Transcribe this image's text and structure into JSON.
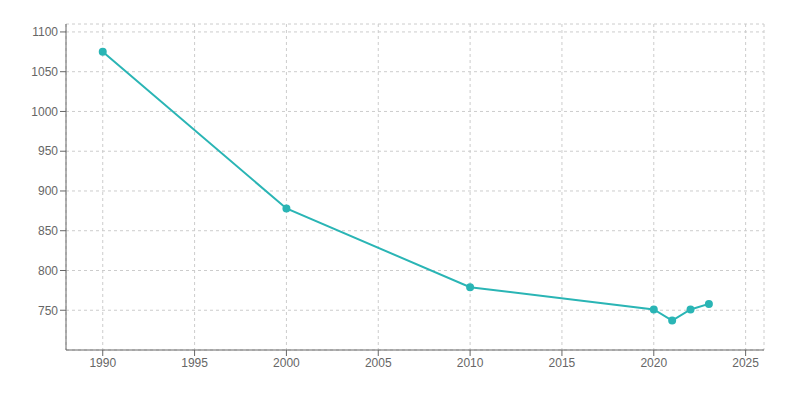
{
  "chart_data": {
    "type": "line",
    "x": [
      1990,
      2000,
      2010,
      2020,
      2021,
      2022,
      2023
    ],
    "values": [
      1075,
      878,
      779,
      751,
      737,
      751,
      758
    ],
    "color": "#2ab5b5",
    "marker": "circle",
    "xlim": [
      1988,
      2026
    ],
    "ylim": [
      700,
      1110
    ],
    "xticks": [
      1990,
      1995,
      2000,
      2005,
      2010,
      2015,
      2020,
      2025
    ],
    "yticks": [
      750,
      800,
      850,
      900,
      950,
      1000,
      1050,
      1100
    ],
    "grid": true
  }
}
